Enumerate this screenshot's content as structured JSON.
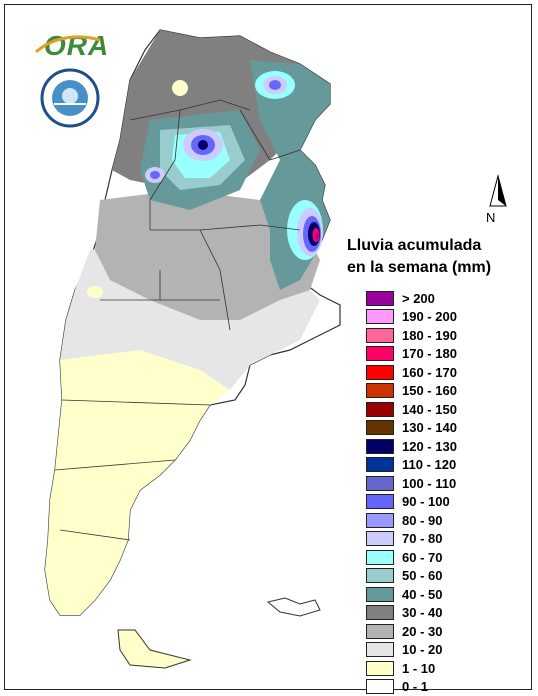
{
  "header": {
    "logo_text": "ORA",
    "seal_name": "servicio-meteorologico-nacional-seal"
  },
  "compass": {
    "label": "N"
  },
  "legend": {
    "title_line1": "Lluvia acumulada",
    "title_line2": "en la semana (mm)",
    "items": [
      {
        "label": "> 200",
        "color": "#990099"
      },
      {
        "label": "190 - 200",
        "color": "#ff99ff"
      },
      {
        "label": "180 - 190",
        "color": "#ff6699"
      },
      {
        "label": "170 - 180",
        "color": "#ff0066"
      },
      {
        "label": "160 - 170",
        "color": "#ff0000"
      },
      {
        "label": "150 - 160",
        "color": "#cc3300"
      },
      {
        "label": "140 - 150",
        "color": "#990000"
      },
      {
        "label": "130 - 140",
        "color": "#663300"
      },
      {
        "label": "120 - 130",
        "color": "#000066"
      },
      {
        "label": "110 - 120",
        "color": "#003399"
      },
      {
        "label": "100 - 110",
        "color": "#6666cc"
      },
      {
        "label": "90 - 100",
        "color": "#6666ff"
      },
      {
        "label": "80 - 90",
        "color": "#9999ff"
      },
      {
        "label": "70 - 80",
        "color": "#ccccff"
      },
      {
        "label": "60 - 70",
        "color": "#99ffff"
      },
      {
        "label": "50 - 60",
        "color": "#99cccc"
      },
      {
        "label": "40 - 50",
        "color": "#669999"
      },
      {
        "label": "30 - 40",
        "color": "#808080"
      },
      {
        "label": "20 - 30",
        "color": "#b3b3b3"
      },
      {
        "label": "10 - 20",
        "color": "#e6e6e6"
      },
      {
        "label": "1 - 10",
        "color": "#ffffcc"
      },
      {
        "label": "0 - 1",
        "color": "#ffffff"
      }
    ]
  },
  "colors": {
    "country_outline": "#333333",
    "c_white": "#ffffff",
    "c_pale": "#ffffcc",
    "c_light": "#e6e6e6",
    "c_mid": "#b3b3b3",
    "c_dark": "#808080",
    "c_teal": "#669999",
    "c_teal_light": "#99cccc",
    "c_cyan": "#99ffff",
    "c_lav": "#ccccff",
    "c_blue": "#6666ff",
    "c_navy": "#000066",
    "c_red": "#ff0066",
    "c_magenta": "#990099"
  }
}
